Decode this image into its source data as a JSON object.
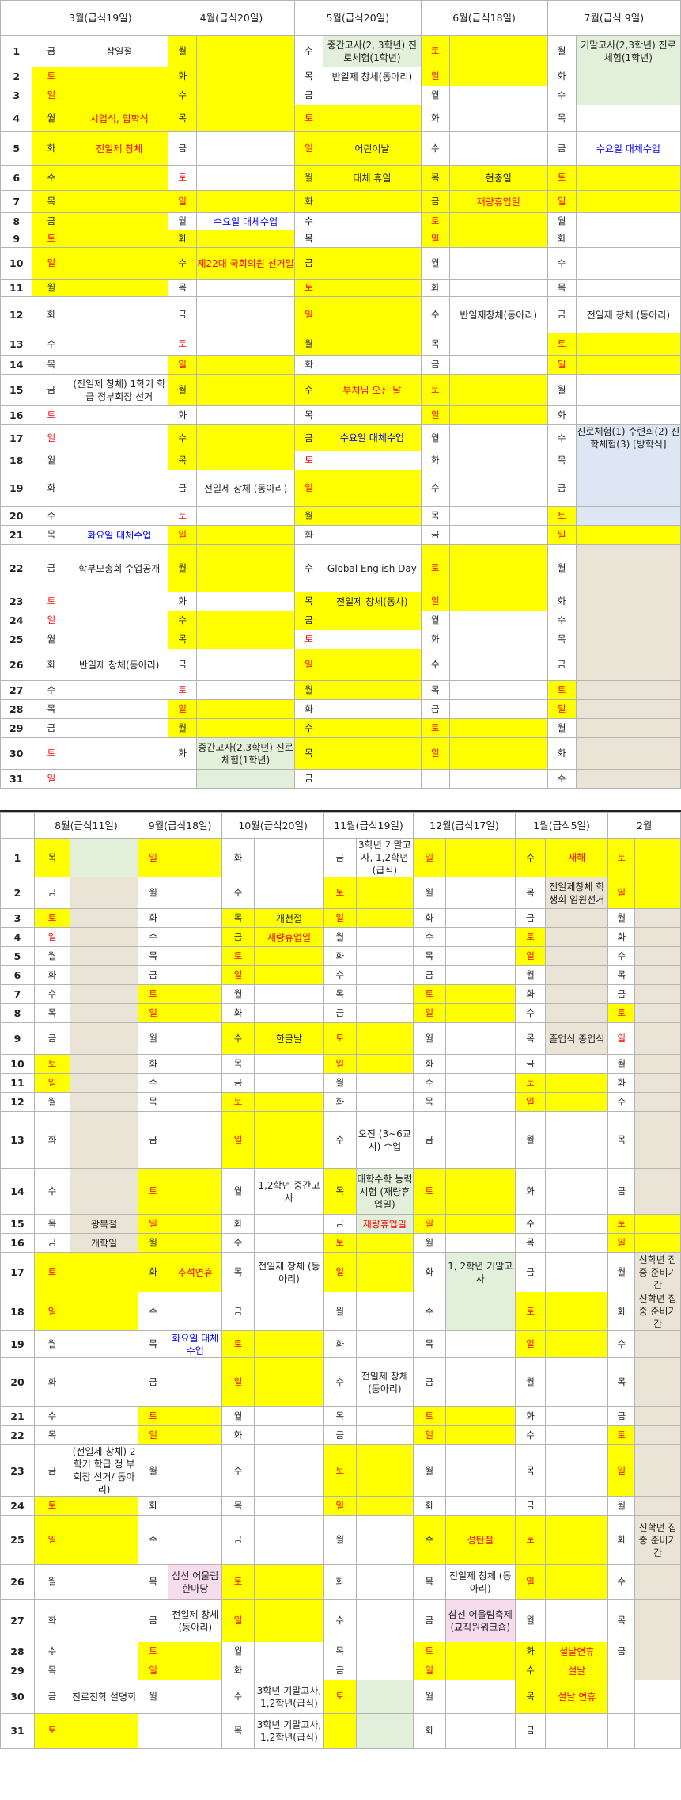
{
  "calendar_top": {
    "months": [
      "3월(급식19일)",
      "4월(급식20일)",
      "5월(급식20일)",
      "6월(급식18일)",
      "7월(급식 9일)"
    ],
    "rows": [
      [
        "1",
        "금",
        "삼일절",
        "월",
        "",
        "수",
        "중간고사(2, 3학년) 진로체험(1학년)",
        "토",
        "",
        "월",
        "기말고사(2,3학년) 진로체험(1학년)"
      ],
      [
        "2",
        "토",
        "",
        "화",
        "",
        "목",
        "반일제 창체(동아리)",
        "일",
        "",
        "화",
        ""
      ],
      [
        "3",
        "일",
        "",
        "수",
        "",
        "금",
        "",
        "월",
        "",
        "수",
        ""
      ],
      [
        "4",
        "월",
        "시업식, 입학식",
        "목",
        "",
        "토",
        "",
        "화",
        "",
        "목",
        ""
      ],
      [
        "5",
        "화",
        "전일제 창체",
        "금",
        "",
        "일",
        "어린이날",
        "수",
        "",
        "금",
        "수요일 대체수업"
      ],
      [
        "6",
        "수",
        "",
        "토",
        "",
        "월",
        "대체 휴일",
        "목",
        "현충일",
        "토",
        ""
      ],
      [
        "7",
        "목",
        "",
        "일",
        "",
        "화",
        "",
        "금",
        "재량휴업일",
        "일",
        ""
      ],
      [
        "8",
        "금",
        "",
        "월",
        "수요일 대체수업",
        "수",
        "",
        "토",
        "",
        "월",
        ""
      ],
      [
        "9",
        "토",
        "",
        "화",
        "",
        "목",
        "",
        "일",
        "",
        "화",
        ""
      ],
      [
        "10",
        "일",
        "",
        "수",
        "제22대 국회의원 선거일",
        "금",
        "",
        "월",
        "",
        "수",
        ""
      ],
      [
        "11",
        "월",
        "",
        "목",
        "",
        "토",
        "",
        "화",
        "",
        "목",
        ""
      ],
      [
        "12",
        "화",
        "",
        "금",
        "",
        "일",
        "",
        "수",
        "반일제창체(동아리)",
        "금",
        "전일제 창체 (동아리)"
      ],
      [
        "13",
        "수",
        "",
        "토",
        "",
        "월",
        "",
        "목",
        "",
        "토",
        ""
      ],
      [
        "14",
        "목",
        "",
        "일",
        "",
        "화",
        "",
        "금",
        "",
        "일",
        ""
      ],
      [
        "15",
        "금",
        "(전일제 창체) 1학기 학급 정부회장 선거",
        "월",
        "",
        "수",
        "부처님 오신 날",
        "토",
        "",
        "월",
        ""
      ],
      [
        "16",
        "토",
        "",
        "화",
        "",
        "목",
        "",
        "일",
        "",
        "화",
        ""
      ],
      [
        "17",
        "일",
        "",
        "수",
        "",
        "금",
        "수요일 대체수업",
        "월",
        "",
        "수",
        "진로체험(1) 수련회(2) 진학체험(3) [방학식]"
      ],
      [
        "18",
        "월",
        "",
        "목",
        "",
        "토",
        "",
        "화",
        "",
        "목",
        ""
      ],
      [
        "19",
        "화",
        "",
        "금",
        "전일제 창체 (동아리)",
        "일",
        "",
        "수",
        "",
        "금",
        ""
      ],
      [
        "20",
        "수",
        "",
        "토",
        "",
        "월",
        "",
        "목",
        "",
        "토",
        ""
      ],
      [
        "21",
        "목",
        "화요일 대체수업",
        "일",
        "",
        "화",
        "",
        "금",
        "",
        "일",
        ""
      ],
      [
        "22",
        "금",
        "학부모총회 수업공개",
        "월",
        "",
        "수",
        "Global English Day",
        "토",
        "",
        "월",
        ""
      ],
      [
        "23",
        "토",
        "",
        "화",
        "",
        "목",
        "전일제 창체(동사)",
        "일",
        "",
        "화",
        ""
      ],
      [
        "24",
        "일",
        "",
        "수",
        "",
        "금",
        "",
        "월",
        "",
        "수",
        ""
      ],
      [
        "25",
        "월",
        "",
        "목",
        "",
        "토",
        "",
        "화",
        "",
        "목",
        ""
      ],
      [
        "26",
        "화",
        "반일제 창체(동아리)",
        "금",
        "",
        "일",
        "",
        "수",
        "",
        "금",
        ""
      ],
      [
        "27",
        "수",
        "",
        "토",
        "",
        "월",
        "",
        "목",
        "",
        "토",
        ""
      ],
      [
        "28",
        "목",
        "",
        "일",
        "",
        "화",
        "",
        "금",
        "",
        "일",
        ""
      ],
      [
        "29",
        "금",
        "",
        "월",
        "",
        "수",
        "",
        "토",
        "",
        "월",
        ""
      ],
      [
        "30",
        "토",
        "",
        "화",
        "중간고사(2,3학년) 진로체험(1학년)",
        "목",
        "",
        "일",
        "",
        "화",
        ""
      ],
      [
        "31",
        "일",
        "",
        "",
        "",
        "금",
        "",
        "",
        "",
        "수",
        ""
      ]
    ]
  },
  "calendar_bottom": {
    "months": [
      "8월(급식11일)",
      "9월(급식18일)",
      "10월(급식20일)",
      "11월(급식19일)",
      "12월(급식17일)",
      "1월(급식5일)",
      "2월"
    ],
    "rows": [
      [
        "1",
        "목",
        "",
        "일",
        "",
        "화",
        "",
        "금",
        "3학년 기말고사, 1,2학년(급식)",
        "일",
        "",
        "수",
        "새해",
        "토",
        ""
      ],
      [
        "2",
        "금",
        "",
        "월",
        "",
        "수",
        "",
        "토",
        "",
        "월",
        "",
        "목",
        "전일제창체 학생회 임원선거",
        "일",
        ""
      ],
      [
        "3",
        "토",
        "",
        "화",
        "",
        "목",
        "개천절",
        "일",
        "",
        "화",
        "",
        "금",
        "",
        "월",
        ""
      ],
      [
        "4",
        "일",
        "",
        "수",
        "",
        "금",
        "재량휴업일",
        "월",
        "",
        "수",
        "",
        "토",
        "",
        "화",
        ""
      ],
      [
        "5",
        "월",
        "",
        "목",
        "",
        "토",
        "",
        "화",
        "",
        "목",
        "",
        "일",
        "",
        "수",
        ""
      ],
      [
        "6",
        "화",
        "",
        "금",
        "",
        "일",
        "",
        "수",
        "",
        "금",
        "",
        "월",
        "",
        "목",
        ""
      ],
      [
        "7",
        "수",
        "",
        "토",
        "",
        "월",
        "",
        "목",
        "",
        "토",
        "",
        "화",
        "",
        "금",
        ""
      ],
      [
        "8",
        "목",
        "",
        "일",
        "",
        "화",
        "",
        "금",
        "",
        "일",
        "",
        "수",
        "",
        "토",
        ""
      ],
      [
        "9",
        "금",
        "",
        "월",
        "",
        "수",
        "한글날",
        "토",
        "",
        "월",
        "",
        "목",
        "졸업식 종업식",
        "일",
        ""
      ],
      [
        "10",
        "토",
        "",
        "화",
        "",
        "목",
        "",
        "일",
        "",
        "화",
        "",
        "금",
        "",
        "월",
        ""
      ],
      [
        "11",
        "일",
        "",
        "수",
        "",
        "금",
        "",
        "월",
        "",
        "수",
        "",
        "토",
        "",
        "화",
        ""
      ],
      [
        "12",
        "월",
        "",
        "목",
        "",
        "토",
        "",
        "화",
        "",
        "목",
        "",
        "일",
        "",
        "수",
        ""
      ],
      [
        "13",
        "화",
        "",
        "금",
        "",
        "일",
        "",
        "수",
        "오전 (3~6교시) 수업",
        "금",
        "",
        "월",
        "",
        "목",
        ""
      ],
      [
        "14",
        "수",
        "",
        "토",
        "",
        "월",
        "1,2학년 중간고사",
        "목",
        "대학수학 능력시험 (재량휴업일)",
        "토",
        "",
        "화",
        "",
        "금",
        ""
      ],
      [
        "15",
        "목",
        "광복절",
        "일",
        "",
        "화",
        "",
        "금",
        "재량휴업일",
        "일",
        "",
        "수",
        "",
        "토",
        ""
      ],
      [
        "16",
        "금",
        "개학일",
        "월",
        "",
        "수",
        "",
        "토",
        "",
        "월",
        "",
        "목",
        "",
        "일",
        ""
      ],
      [
        "17",
        "토",
        "",
        "화",
        "추석연휴",
        "목",
        "전일제 창체 (동아리)",
        "일",
        "",
        "화",
        "1, 2학년 기말고사",
        "금",
        "",
        "월",
        "신학년 집중 준비기간"
      ],
      [
        "18",
        "일",
        "",
        "수",
        "",
        "금",
        "",
        "월",
        "",
        "수",
        "",
        "토",
        "",
        "화",
        "신학년 집중 준비기간"
      ],
      [
        "19",
        "월",
        "",
        "목",
        "화요일 대체수업",
        "토",
        "",
        "화",
        "",
        "목",
        "",
        "일",
        "",
        "수",
        ""
      ],
      [
        "20",
        "화",
        "",
        "금",
        "",
        "일",
        "",
        "수",
        "전일제 창체 (동아리)",
        "금",
        "",
        "월",
        "",
        "목",
        ""
      ],
      [
        "21",
        "수",
        "",
        "토",
        "",
        "월",
        "",
        "목",
        "",
        "토",
        "",
        "화",
        "",
        "금",
        ""
      ],
      [
        "22",
        "목",
        "",
        "일",
        "",
        "화",
        "",
        "금",
        "",
        "일",
        "",
        "수",
        "",
        "토",
        ""
      ],
      [
        "23",
        "금",
        "(전일제 창체) 2학기 학급 정 부회장 선거/ 동아리)",
        "월",
        "",
        "수",
        "",
        "토",
        "",
        "월",
        "",
        "목",
        "",
        "일",
        ""
      ],
      [
        "24",
        "토",
        "",
        "화",
        "",
        "목",
        "",
        "일",
        "",
        "화",
        "",
        "금",
        "",
        "월",
        ""
      ],
      [
        "25",
        "일",
        "",
        "수",
        "",
        "금",
        "",
        "월",
        "",
        "수",
        "성탄절",
        "토",
        "",
        "화",
        "신학년 집중 준비기간"
      ],
      [
        "26",
        "월",
        "",
        "목",
        "삼선 어울림 한마당",
        "토",
        "",
        "화",
        "",
        "목",
        "전일제 창체 (동아리)",
        "일",
        "",
        "수",
        ""
      ],
      [
        "27",
        "화",
        "",
        "금",
        "전일제 창체 (동아리)",
        "일",
        "",
        "수",
        "",
        "금",
        "삼선 어울림축제 (교직원워크숍)",
        "월",
        "",
        "목",
        ""
      ],
      [
        "28",
        "수",
        "",
        "토",
        "",
        "월",
        "",
        "목",
        "",
        "토",
        "",
        "화",
        "설날연휴",
        "금",
        ""
      ],
      [
        "29",
        "목",
        "",
        "일",
        "",
        "화",
        "",
        "금",
        "",
        "일",
        "",
        "수",
        "설날",
        "",
        ""
      ],
      [
        "30",
        "금",
        "진로진학 설명회",
        "월",
        "",
        "수",
        "3학년 기말고사, 1,2학년(급식)",
        "토",
        "",
        "월",
        "",
        "목",
        "설날 연휴",
        "",
        ""
      ],
      [
        "31",
        "토",
        "",
        "",
        "",
        "목",
        "3학년 기말고사, 1,2학년(급식)",
        "",
        "",
        "화",
        "",
        "금",
        "",
        "",
        ""
      ]
    ]
  },
  "colors": {
    "holiday_fill": "#ffff00",
    "exam_fill": "#e2efda",
    "summer_fill": "#dde6f2",
    "vacation_fill": "#e9e4d6",
    "festival_fill": "#f6dcec",
    "holiday_text": "#ff0000",
    "substitute_class_text": "#0000ff"
  }
}
